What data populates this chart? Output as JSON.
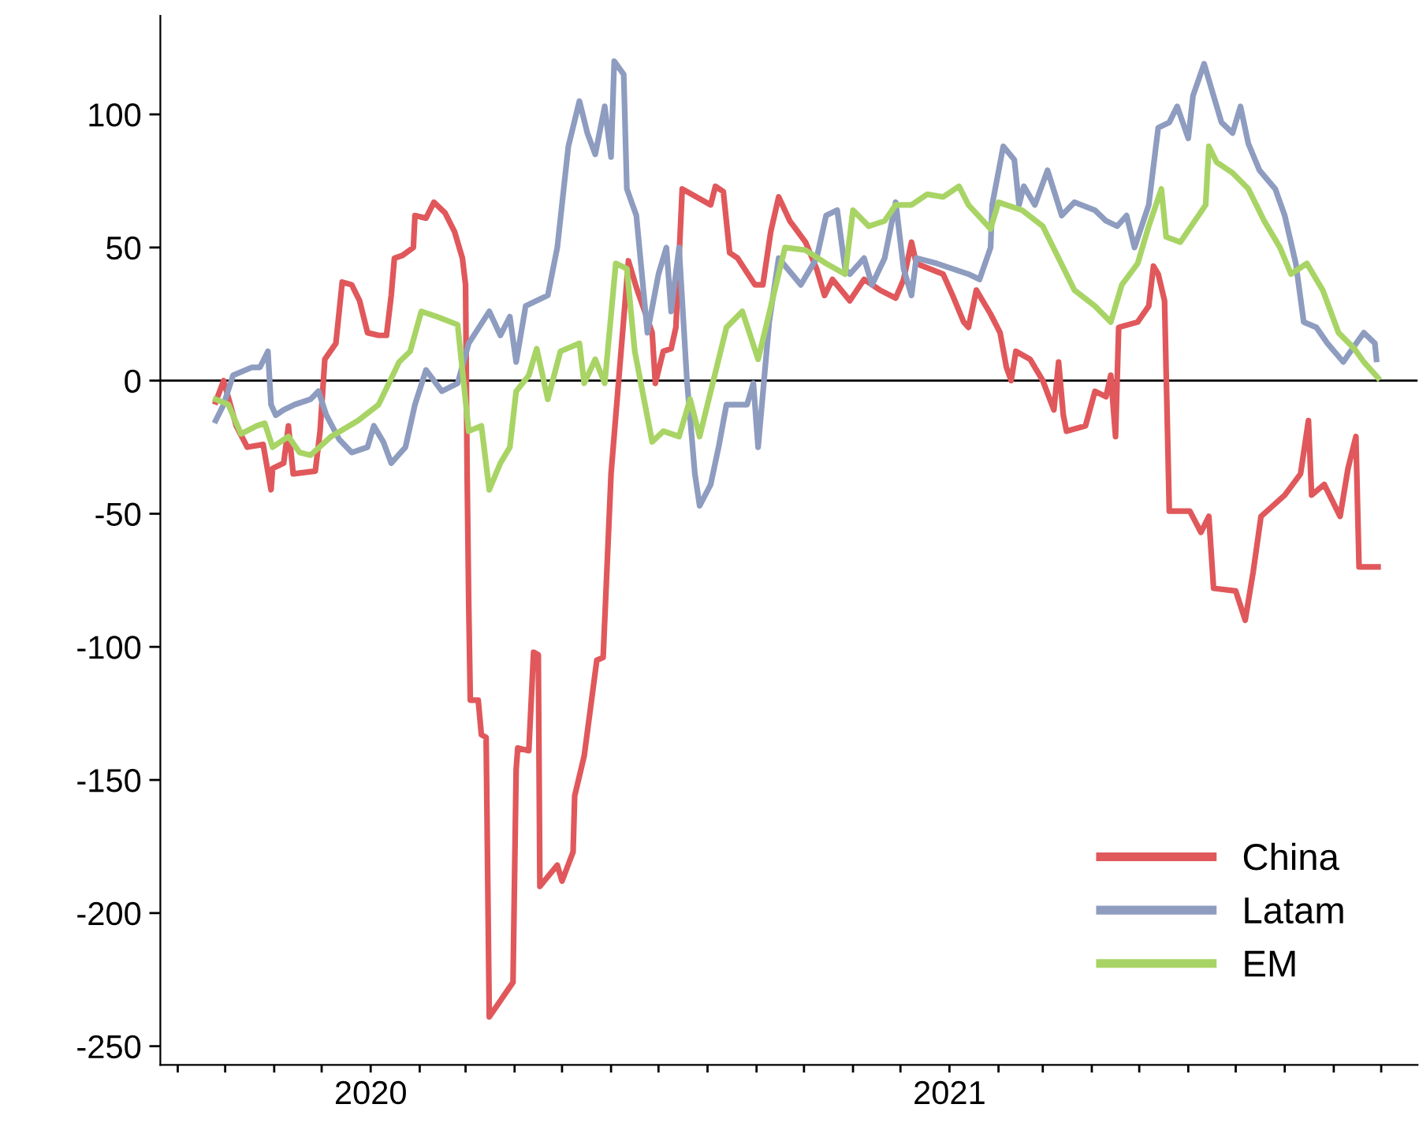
{
  "chart_data": {
    "type": "line",
    "xlim": [
      "2019-08-21",
      "2021-10-24"
    ],
    "ylim": [
      -257,
      137
    ],
    "yticks": [
      -250,
      -200,
      -150,
      -100,
      -50,
      0,
      50,
      100
    ],
    "xticks": [
      {
        "value": "2019-09-01",
        "label": null
      },
      {
        "value": "2019-10-01",
        "label": null
      },
      {
        "value": "2019-11-01",
        "label": null
      },
      {
        "value": "2019-12-01",
        "label": null
      },
      {
        "value": "2020-01-01",
        "label": "2020"
      },
      {
        "value": "2020-02-01",
        "label": null
      },
      {
        "value": "2020-03-01",
        "label": null
      },
      {
        "value": "2020-04-01",
        "label": null
      },
      {
        "value": "2020-05-01",
        "label": null
      },
      {
        "value": "2020-06-01",
        "label": null
      },
      {
        "value": "2020-07-01",
        "label": null
      },
      {
        "value": "2020-08-01",
        "label": null
      },
      {
        "value": "2020-09-01",
        "label": null
      },
      {
        "value": "2020-10-01",
        "label": null
      },
      {
        "value": "2020-11-01",
        "label": null
      },
      {
        "value": "2020-12-01",
        "label": null
      },
      {
        "value": "2021-01-01",
        "label": "2021"
      },
      {
        "value": "2021-02-01",
        "label": null
      },
      {
        "value": "2021-03-01",
        "label": null
      },
      {
        "value": "2021-04-01",
        "label": null
      },
      {
        "value": "2021-05-01",
        "label": null
      },
      {
        "value": "2021-06-01",
        "label": null
      },
      {
        "value": "2021-07-01",
        "label": null
      },
      {
        "value": "2021-08-01",
        "label": null
      },
      {
        "value": "2021-09-01",
        "label": null
      },
      {
        "value": "2021-10-01",
        "label": null
      }
    ],
    "grid": false,
    "legend": "bottom right",
    "ref_lines": [
      {
        "axis": "y",
        "value": 0,
        "color": "#000000"
      }
    ],
    "series": [
      {
        "name": "China",
        "color": "#e0585b",
        "x": [
          "2019-09-25",
          "2019-09-30",
          "2019-10-08",
          "2019-10-15",
          "2019-10-25",
          "2019-10-30",
          "2019-10-31",
          "2019-11-07",
          "2019-11-10",
          "2019-11-13",
          "2019-11-27",
          "2019-11-30",
          "2019-12-03",
          "2019-12-10",
          "2019-12-14",
          "2019-12-20",
          "2019-12-25",
          "2019-12-30",
          "2020-01-06",
          "2020-01-11",
          "2020-01-14",
          "2020-01-16",
          "2020-01-21",
          "2020-01-28",
          "2020-01-29",
          "2020-02-05",
          "2020-02-10",
          "2020-02-17",
          "2020-02-23",
          "2020-02-28",
          "2020-03-01",
          "2020-03-02",
          "2020-03-03",
          "2020-03-04",
          "2020-03-09",
          "2020-03-11",
          "2020-03-14",
          "2020-03-16",
          "2020-03-31",
          "2020-04-02",
          "2020-04-03",
          "2020-04-10",
          "2020-04-13",
          "2020-04-16",
          "2020-04-17",
          "2020-04-28",
          "2020-05-01",
          "2020-05-08",
          "2020-05-09",
          "2020-05-15",
          "2020-05-23",
          "2020-05-27",
          "2020-06-01",
          "2020-06-12",
          "2020-06-17",
          "2020-06-27",
          "2020-06-29",
          "2020-07-04",
          "2020-07-09",
          "2020-07-12",
          "2020-07-16",
          "2020-08-03",
          "2020-08-06",
          "2020-08-11",
          "2020-08-15",
          "2020-08-20",
          "2020-08-31",
          "2020-09-05",
          "2020-09-10",
          "2020-09-15",
          "2020-09-22",
          "2020-10-02",
          "2020-10-09",
          "2020-10-14",
          "2020-10-19",
          "2020-10-30",
          "2020-11-08",
          "2020-11-18",
          "2020-11-28",
          "2020-12-03",
          "2020-12-08",
          "2020-12-11",
          "2020-12-28",
          "2021-01-03",
          "2021-01-10",
          "2021-01-13",
          "2021-01-18",
          "2021-01-27",
          "2021-02-02",
          "2021-02-06",
          "2021-02-09",
          "2021-02-12",
          "2021-02-21",
          "2021-03-01",
          "2021-03-08",
          "2021-03-11",
          "2021-03-14",
          "2021-03-16",
          "2021-03-28",
          "2021-04-03",
          "2021-04-10",
          "2021-04-13",
          "2021-04-16",
          "2021-04-18",
          "2021-04-30",
          "2021-05-07",
          "2021-05-10",
          "2021-05-13",
          "2021-05-17",
          "2021-05-20",
          "2021-06-02",
          "2021-06-09",
          "2021-06-14",
          "2021-06-17",
          "2021-07-01",
          "2021-07-07",
          "2021-07-12",
          "2021-07-17",
          "2021-08-01",
          "2021-08-11",
          "2021-08-16",
          "2021-08-18",
          "2021-08-26",
          "2021-09-05",
          "2021-09-10",
          "2021-09-15",
          "2021-09-17",
          "2021-09-29"
        ],
        "values": [
          -8,
          0,
          -17,
          -25,
          -24,
          -41,
          -33,
          -31,
          -17,
          -35,
          -34,
          -19,
          8,
          14,
          37,
          36,
          30,
          18,
          17,
          17,
          32,
          46,
          47,
          50,
          62,
          61,
          67,
          63,
          56,
          46,
          36,
          -35,
          -84,
          -120,
          -120,
          -133,
          -134,
          -239,
          -226,
          -146,
          -138,
          -139,
          -102,
          -103,
          -190,
          -182,
          -188,
          -177,
          -156,
          -141,
          -105,
          -104,
          -35,
          45,
          35,
          18,
          -1,
          11,
          12,
          20,
          72,
          66,
          73,
          71,
          48,
          46,
          36,
          36,
          56,
          69,
          60,
          52,
          42,
          32,
          38,
          30,
          38,
          34,
          31,
          38,
          52,
          44,
          40,
          32,
          22,
          20,
          34,
          25,
          18,
          5,
          0,
          11,
          8,
          0,
          -11,
          7,
          -13,
          -19,
          -17,
          -4,
          -6,
          2,
          -21,
          20,
          22,
          28,
          43,
          40,
          30,
          -49,
          -49,
          -57,
          -51,
          -78,
          -79,
          -90,
          -72,
          -51,
          -43,
          -35,
          -15,
          -43,
          -39,
          -51,
          -33,
          -21,
          -70,
          -70
        ]
      },
      {
        "name": "Latam",
        "color": "#8e9cc0",
        "x": [
          "2019-09-25",
          "2019-09-30",
          "2019-10-06",
          "2019-10-18",
          "2019-10-23",
          "2019-10-28",
          "2019-10-30",
          "2019-11-02",
          "2019-11-07",
          "2019-11-14",
          "2019-11-24",
          "2019-11-29",
          "2019-12-04",
          "2019-12-12",
          "2019-12-20",
          "2019-12-30",
          "2020-01-03",
          "2020-01-09",
          "2020-01-14",
          "2020-01-23",
          "2020-01-29",
          "2020-02-05",
          "2020-02-15",
          "2020-02-25",
          "2020-03-03",
          "2020-03-16",
          "2020-03-23",
          "2020-03-29",
          "2020-04-02",
          "2020-04-08",
          "2020-04-22",
          "2020-04-28",
          "2020-05-05",
          "2020-05-12",
          "2020-05-17",
          "2020-05-22",
          "2020-05-28",
          "2020-06-01",
          "2020-06-03",
          "2020-06-09",
          "2020-06-11",
          "2020-06-17",
          "2020-06-24",
          "2020-07-01",
          "2020-07-06",
          "2020-07-09",
          "2020-07-14",
          "2020-07-19",
          "2020-07-24",
          "2020-07-27",
          "2020-08-03",
          "2020-08-08",
          "2020-08-13",
          "2020-08-26",
          "2020-08-30",
          "2020-09-02",
          "2020-09-09",
          "2020-09-15",
          "2020-09-29",
          "2020-10-09",
          "2020-10-15",
          "2020-10-22",
          "2020-10-27",
          "2020-10-30",
          "2020-11-08",
          "2020-11-13",
          "2020-11-21",
          "2020-11-28",
          "2020-12-03",
          "2020-12-08",
          "2020-12-11",
          "2020-12-24",
          "2021-01-03",
          "2021-01-13",
          "2021-01-20",
          "2021-01-27",
          "2021-01-28",
          "2021-02-04",
          "2021-02-11",
          "2021-02-14",
          "2021-02-17",
          "2021-02-24",
          "2021-03-04",
          "2021-03-13",
          "2021-03-21",
          "2021-04-03",
          "2021-04-10",
          "2021-04-17",
          "2021-04-23",
          "2021-04-28",
          "2021-05-07",
          "2021-05-13",
          "2021-05-20",
          "2021-05-25",
          "2021-06-01",
          "2021-06-04",
          "2021-06-11",
          "2021-06-16",
          "2021-06-22",
          "2021-06-29",
          "2021-07-04",
          "2021-07-09",
          "2021-07-16",
          "2021-07-26",
          "2021-08-01",
          "2021-08-08",
          "2021-08-13",
          "2021-08-21",
          "2021-08-28",
          "2021-09-07",
          "2021-09-14",
          "2021-09-20",
          "2021-09-27",
          "2021-09-28"
        ],
        "values": [
          -15,
          -9,
          2,
          5,
          5,
          11,
          -9,
          -13,
          -11,
          -9,
          -7,
          -4,
          -13,
          -22,
          -27,
          -25,
          -17,
          -23,
          -31,
          -25,
          -9,
          4,
          -4,
          -1,
          14,
          26,
          17,
          24,
          7,
          28,
          32,
          50,
          88,
          105,
          93,
          85,
          103,
          84,
          120,
          115,
          72,
          62,
          18,
          40,
          50,
          26,
          50,
          0,
          -35,
          -47,
          -39,
          -25,
          -9,
          -9,
          -1,
          -25,
          22,
          46,
          36,
          46,
          62,
          64,
          42,
          40,
          46,
          36,
          46,
          67,
          42,
          32,
          46,
          44,
          42,
          40,
          38,
          50,
          66,
          88,
          83,
          66,
          73,
          66,
          79,
          62,
          67,
          64,
          60,
          58,
          62,
          50,
          66,
          95,
          97,
          103,
          91,
          107,
          119,
          109,
          97,
          93,
          103,
          89,
          79,
          72,
          62,
          44,
          22,
          20,
          14,
          7,
          13,
          18,
          14,
          8
        ]
      },
      {
        "name": "EM",
        "color": "#a8d465",
        "x": [
          "2019-09-25",
          "2019-10-03",
          "2019-10-11",
          "2019-10-21",
          "2019-10-26",
          "2019-10-31",
          "2019-11-10",
          "2019-11-17",
          "2019-11-24",
          "2019-12-07",
          "2019-12-24",
          "2020-01-06",
          "2020-01-19",
          "2020-01-26",
          "2020-02-02",
          "2020-02-12",
          "2020-02-25",
          "2020-03-03",
          "2020-03-11",
          "2020-03-16",
          "2020-03-23",
          "2020-03-29",
          "2020-04-02",
          "2020-04-10",
          "2020-04-15",
          "2020-04-22",
          "2020-04-30",
          "2020-05-12",
          "2020-05-15",
          "2020-05-22",
          "2020-05-28",
          "2020-06-04",
          "2020-06-11",
          "2020-06-16",
          "2020-06-27",
          "2020-07-04",
          "2020-07-14",
          "2020-07-21",
          "2020-07-27",
          "2020-08-13",
          "2020-08-23",
          "2020-09-02",
          "2020-09-19",
          "2020-10-02",
          "2020-10-15",
          "2020-10-27",
          "2020-11-01",
          "2020-11-11",
          "2020-11-21",
          "2020-11-28",
          "2020-12-08",
          "2020-12-18",
          "2020-12-28",
          "2021-01-07",
          "2021-01-13",
          "2021-01-27",
          "2021-02-01",
          "2021-02-16",
          "2021-03-01",
          "2021-03-11",
          "2021-03-21",
          "2021-04-03",
          "2021-04-13",
          "2021-04-20",
          "2021-04-30",
          "2021-05-07",
          "2021-05-15",
          "2021-05-18",
          "2021-05-27",
          "2021-06-12",
          "2021-06-14",
          "2021-06-19",
          "2021-06-29",
          "2021-07-09",
          "2021-07-19",
          "2021-07-29",
          "2021-08-05",
          "2021-08-15",
          "2021-08-25",
          "2021-09-04",
          "2021-09-14",
          "2021-09-20",
          "2021-09-29"
        ],
        "values": [
          -7,
          -9,
          -20,
          -17,
          -16,
          -25,
          -21,
          -27,
          -28,
          -21,
          -15,
          -9,
          7,
          11,
          26,
          24,
          21,
          -19,
          -17,
          -41,
          -31,
          -25,
          -4,
          2,
          12,
          -7,
          11,
          14,
          -1,
          8,
          -1,
          44,
          42,
          11,
          -23,
          -19,
          -21,
          -7,
          -21,
          20,
          26,
          8,
          50,
          49,
          44,
          40,
          64,
          58,
          60,
          66,
          66,
          70,
          69,
          73,
          66,
          57,
          67,
          64,
          58,
          46,
          34,
          28,
          22,
          36,
          44,
          58,
          72,
          54,
          52,
          66,
          88,
          82,
          78,
          72,
          60,
          50,
          40,
          44,
          34,
          18,
          12,
          7,
          1
        ]
      }
    ]
  }
}
